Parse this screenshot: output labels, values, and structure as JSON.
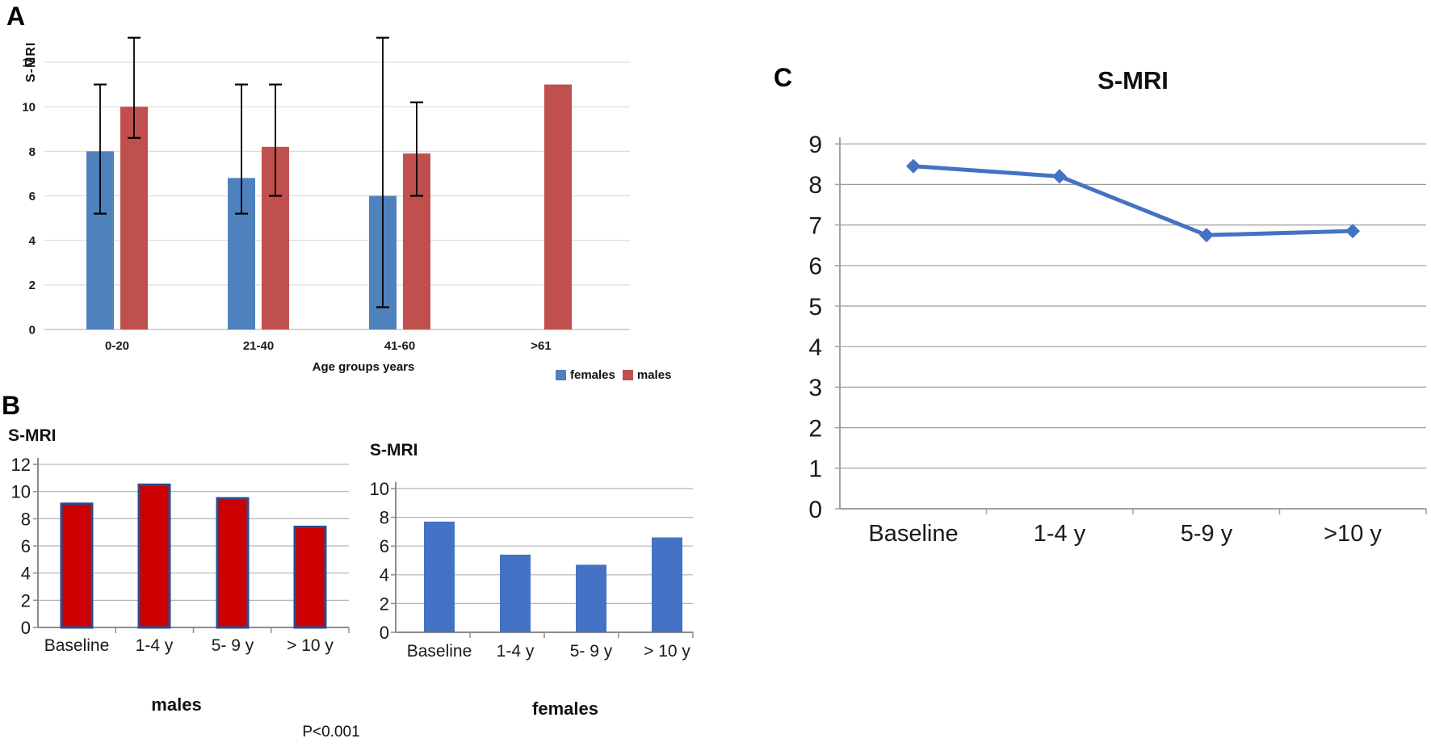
{
  "panels": {
    "A": {
      "letter": "A"
    },
    "B": {
      "letter": "B",
      "p_value": "P<0.001"
    },
    "C": {
      "letter": "C"
    }
  },
  "chart_data": [
    {
      "id": "panelA",
      "type": "bar",
      "ylabel": "S-MRI",
      "xlabel": "Age groups years",
      "categories": [
        "0-20",
        "21-40",
        "41-60",
        ">61"
      ],
      "series": [
        {
          "name": "females",
          "color": "#4f81bd",
          "values": [
            8,
            6.8,
            6,
            null
          ],
          "error_low": [
            5.2,
            5.2,
            1,
            null
          ],
          "error_high": [
            11,
            11,
            13.1,
            null
          ]
        },
        {
          "name": "males",
          "color": "#c0504d",
          "values": [
            10,
            8.2,
            7.9,
            11
          ],
          "error_low": [
            8.6,
            6,
            6,
            null
          ],
          "error_high": [
            13.1,
            11,
            10.2,
            null
          ]
        }
      ],
      "ylim": [
        0,
        12
      ],
      "ytick_step": 2,
      "grid": true,
      "legend_position": "bottom-right"
    },
    {
      "id": "panelB_males",
      "type": "bar",
      "title": "S-MRI",
      "caption": "males",
      "categories": [
        "Baseline",
        "1-4 y",
        "5- 9 y",
        "> 10 y"
      ],
      "values": [
        9.1,
        10.5,
        9.5,
        7.4
      ],
      "ylim": [
        0,
        12
      ],
      "ytick_step": 2,
      "bar_color": "#cc0000",
      "bar_border_color": "#2a4d8f",
      "grid": true
    },
    {
      "id": "panelB_females",
      "type": "bar",
      "title": "S-MRI",
      "caption": "females",
      "categories": [
        "Baseline",
        "1-4 y",
        "5- 9 y",
        "> 10 y"
      ],
      "values": [
        7.7,
        5.4,
        4.7,
        6.6
      ],
      "ylim": [
        0,
        10
      ],
      "ytick_step": 2,
      "bar_color": "#4472c4",
      "grid": true
    },
    {
      "id": "panelC",
      "type": "line",
      "title": "S-MRI",
      "categories": [
        "Baseline",
        "1-4 y",
        "5-9 y",
        ">10 y"
      ],
      "values": [
        8.45,
        8.2,
        6.75,
        6.85
      ],
      "ylim": [
        0,
        9
      ],
      "ytick_step": 1,
      "line_color": "#4472c4",
      "marker": "diamond",
      "grid": true
    }
  ],
  "colors": {
    "female_blue": "#4f81bd",
    "male_red": "#c0504d",
    "panelB_male_fill": "#cc0000",
    "panelB_male_border": "#2a4d8f",
    "panelB_female_fill": "#4472c4",
    "panelC_line": "#4472c4",
    "error_bar": "#000000",
    "grid_light": "#dcdcdc",
    "grid_medium": "#b3b3b3",
    "axis_gray": "#8c8c8c",
    "background": "#ffffff"
  }
}
